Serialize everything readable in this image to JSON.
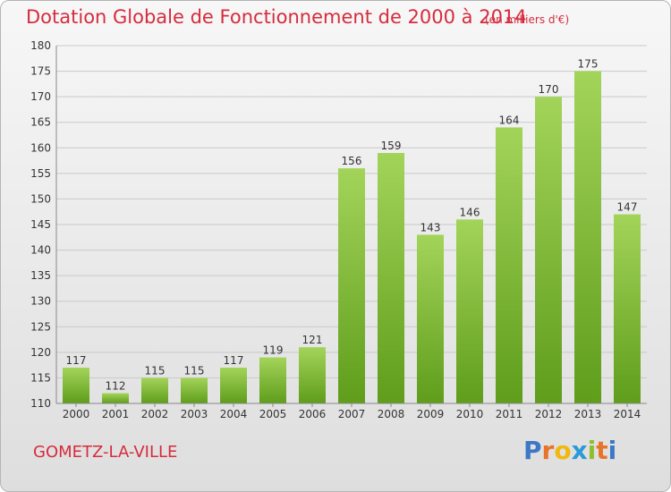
{
  "title": "Dotation Globale de Fonctionnement de 2000 à 2014",
  "unit_note": "(en milliers d'€)",
  "commune": "GOMETZ-LA-VILLE",
  "logo": "Proxiti",
  "colors": {
    "title": "#d52c3d",
    "bar_light": "#a3d45a",
    "bar_dark": "#5f9d1b",
    "logo_letters": [
      "#3b79c4",
      "#e8732b",
      "#f0b90f",
      "#2b9ad6",
      "#8fbf2c",
      "#e8732b",
      "#3b79c4"
    ]
  },
  "chart_data": {
    "type": "bar",
    "title": "Dotation Globale de Fonctionnement de 2000 à 2014",
    "categories": [
      "2000",
      "2001",
      "2002",
      "2003",
      "2004",
      "2005",
      "2006",
      "2007",
      "2008",
      "2009",
      "2010",
      "2011",
      "2012",
      "2013",
      "2014"
    ],
    "values": [
      117,
      112,
      115,
      115,
      117,
      119,
      121,
      156,
      159,
      143,
      146,
      164,
      170,
      175,
      147
    ],
    "ylim": [
      110,
      180
    ],
    "yticks": [
      110,
      115,
      120,
      125,
      130,
      135,
      140,
      145,
      150,
      155,
      160,
      165,
      170,
      175,
      180
    ],
    "grid": true
  }
}
